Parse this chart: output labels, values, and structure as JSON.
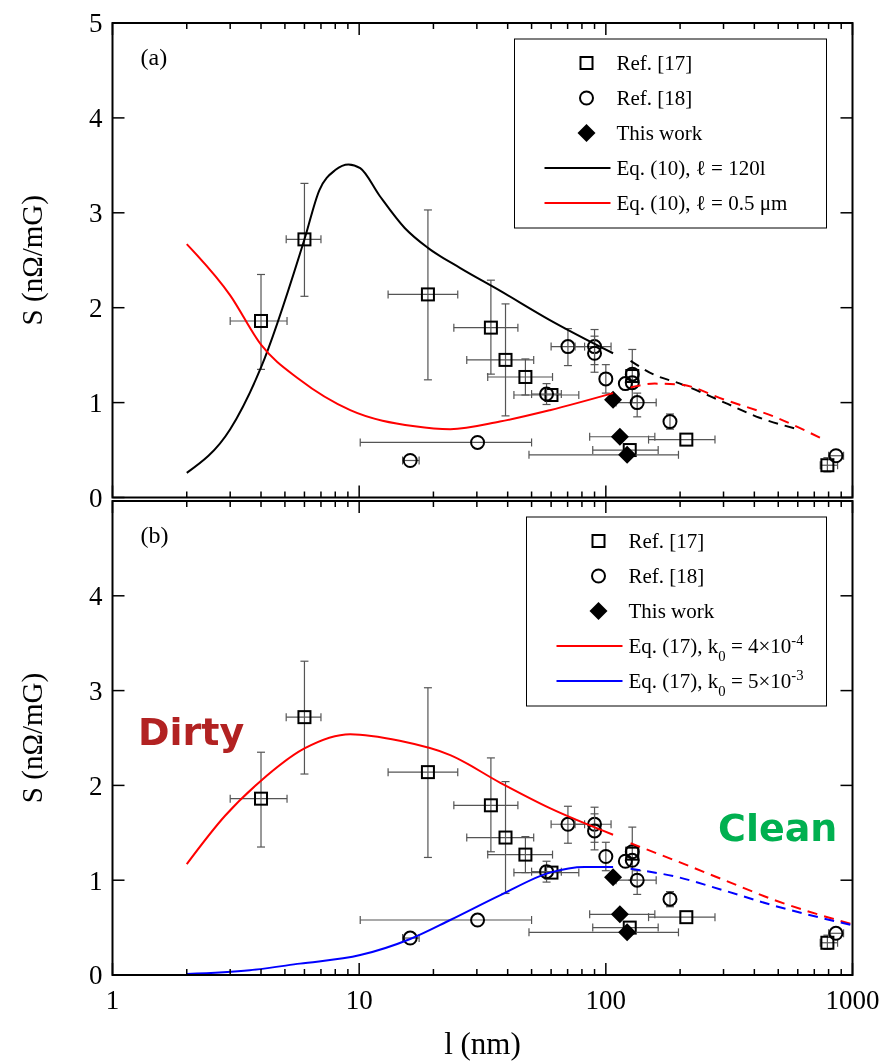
{
  "chart_data": [
    {
      "type": "scatter",
      "ylabel": "S (nΩ/mG)",
      "log": "x",
      "xlim": [
        1,
        1000
      ],
      "ylim": [
        0,
        5
      ],
      "tick_labels": "y",
      "legend": "top right",
      "xticks": [
        1,
        {
          "value": 2,
          "label": null
        },
        {
          "value": 3,
          "label": null
        },
        {
          "value": 4,
          "label": null
        },
        {
          "value": 5,
          "label": null
        },
        {
          "value": 6,
          "label": null
        },
        {
          "value": 7,
          "label": null
        },
        {
          "value": 8,
          "label": null
        },
        {
          "value": 9,
          "label": null
        },
        10,
        {
          "value": 20,
          "label": null
        },
        {
          "value": 30,
          "label": null
        },
        {
          "value": 40,
          "label": null
        },
        {
          "value": 50,
          "label": null
        },
        {
          "value": 60,
          "label": null
        },
        {
          "value": 70,
          "label": null
        },
        {
          "value": 80,
          "label": null
        },
        {
          "value": 90,
          "label": null
        },
        100,
        {
          "value": 200,
          "label": null
        },
        {
          "value": 300,
          "label": null
        },
        {
          "value": 400,
          "label": null
        },
        {
          "value": 500,
          "label": null
        },
        {
          "value": 600,
          "label": null
        },
        {
          "value": 700,
          "label": null
        },
        {
          "value": 800,
          "label": null
        },
        {
          "value": 900,
          "label": null
        },
        1000
      ],
      "yticks": [
        0,
        1,
        2,
        3,
        4,
        5
      ],
      "annotations": [
        "(a)"
      ],
      "series": [
        {
          "name": "Ref. [17]",
          "type": "scatter",
          "marker": "square",
          "color": "#000000",
          "x": [
            4.0,
            6.0,
            19.0,
            34.2,
            39.2,
            47.2,
            60.2,
            128,
            125,
            212,
            791
          ],
          "values": [
            1.86,
            2.72,
            2.14,
            1.79,
            1.45,
            1.27,
            1.08,
            1.28,
            0.5,
            0.61,
            0.34
          ],
          "errors": [
            [
              1.35,
              2.35
            ],
            [
              2.12,
              3.31
            ],
            [
              1.24,
              3.03
            ],
            [
              1.3,
              2.29
            ],
            [
              0.86,
              2.04
            ],
            [
              1.08,
              1.46
            ],
            null,
            [
              1.0,
              1.56
            ],
            null,
            null,
            [
              0.27,
              0.42
            ]
          ],
          "xerrors": [
            [
              3.0,
              5.1
            ],
            [
              5.06,
              7.0
            ],
            [
              13.1,
              25.1
            ],
            [
              24.2,
              44
            ],
            [
              27.3,
              51
            ],
            [
              33.2,
              60.8
            ],
            [
              42.4,
              77.7
            ],
            null,
            [
              88.5,
              163
            ],
            [
              149,
              277
            ],
            [
              740,
              870
            ]
          ]
        },
        {
          "name": "Ref. [18]",
          "type": "scatter",
          "marker": "circle",
          "color": "#000000",
          "x": [
            16.1,
            30.2,
            57.5,
            70.2,
            90,
            90,
            100,
            120,
            128,
            128,
            134,
            182,
            857
          ],
          "values": [
            0.39,
            0.58,
            1.09,
            1.59,
            1.59,
            1.52,
            1.25,
            1.2,
            1.3,
            1.21,
            1.0,
            0.8,
            0.44
          ],
          "errors": [
            null,
            null,
            [
              0.98,
              1.2
            ],
            [
              1.39,
              1.78
            ],
            [
              1.4,
              1.77
            ],
            [
              1.32,
              1.7
            ],
            [
              1.1,
              1.4
            ],
            null,
            null,
            null,
            [
              0.85,
              1.1
            ],
            [
              0.72,
              0.88
            ],
            null
          ],
          "xerrors": [
            [
              15,
              17.5
            ],
            [
              10.1,
              50
            ],
            [
              50,
              66
            ],
            [
              60,
              82
            ],
            [
              75,
              105
            ],
            null,
            null,
            null,
            null,
            null,
            [
              110,
              160
            ],
            null,
            [
              800,
              920
            ]
          ]
        },
        {
          "name": "This work",
          "type": "scatter",
          "marker": "diamond",
          "color": "#000000",
          "x": [
            107,
            114,
            122
          ],
          "values": [
            1.03,
            0.64,
            0.45
          ],
          "xerrors": [
            null,
            [
              86,
              158
            ],
            [
              48.8,
              197
            ]
          ]
        },
        {
          "name": "Eq. (10), ℓ = 120l",
          "type": "line",
          "color": "#000000",
          "line_style": "solid",
          "x": [
            2,
            3,
            4,
            6,
            6.9,
            8,
            9.05,
            10.1,
            12.1,
            15.3,
            19,
            25.6,
            37.2,
            59.3,
            107
          ],
          "values": [
            0.26,
            0.72,
            1.37,
            2.72,
            3.24,
            3.45,
            3.51,
            3.47,
            3.18,
            2.84,
            2.63,
            2.42,
            2.18,
            1.87,
            1.52
          ]
        },
        {
          "name": "Eq. (10), ℓ = 0.5 μm",
          "type": "line",
          "color": "#ff0000",
          "line_style": "solid",
          "x": [
            2,
            3,
            4,
            5.75,
            9.2,
            16.8,
            23.4,
            37.2,
            59.3,
            107
          ],
          "values": [
            2.67,
            2.13,
            1.61,
            1.24,
            0.92,
            0.75,
            0.72,
            0.8,
            0.92,
            1.1
          ]
        },
        {
          "type": "line",
          "color": "#000000",
          "line_style": "dashed",
          "x": [
            126,
            158,
            200,
            303,
            420,
            580
          ],
          "values": [
            1.44,
            1.29,
            1.2,
            1.0,
            0.84,
            0.73
          ]
        },
        {
          "type": "line",
          "color": "#ff0000",
          "line_style": "dashed",
          "x": [
            126,
            158,
            200,
            303,
            483,
            738
          ],
          "values": [
            1.16,
            1.2,
            1.19,
            1.03,
            0.85,
            0.63
          ]
        }
      ]
    },
    {
      "type": "scatter",
      "xlabel": "l (nm)",
      "ylabel": "S (nΩ/mG)",
      "log": "x",
      "xlim": [
        1,
        1000
      ],
      "ylim": [
        0,
        5
      ],
      "legend": "top right",
      "xticks": [
        1,
        {
          "value": 2,
          "label": null
        },
        {
          "value": 3,
          "label": null
        },
        {
          "value": 4,
          "label": null
        },
        {
          "value": 5,
          "label": null
        },
        {
          "value": 6,
          "label": null
        },
        {
          "value": 7,
          "label": null
        },
        {
          "value": 8,
          "label": null
        },
        {
          "value": 9,
          "label": null
        },
        10,
        {
          "value": 20,
          "label": null
        },
        {
          "value": 30,
          "label": null
        },
        {
          "value": 40,
          "label": null
        },
        {
          "value": 50,
          "label": null
        },
        {
          "value": 60,
          "label": null
        },
        {
          "value": 70,
          "label": null
        },
        {
          "value": 80,
          "label": null
        },
        {
          "value": 90,
          "label": null
        },
        100,
        {
          "value": 200,
          "label": null
        },
        {
          "value": 300,
          "label": null
        },
        {
          "value": 400,
          "label": null
        },
        {
          "value": 500,
          "label": null
        },
        {
          "value": 600,
          "label": null
        },
        {
          "value": 700,
          "label": null
        },
        {
          "value": 800,
          "label": null
        },
        {
          "value": 900,
          "label": null
        },
        1000
      ],
      "yticks": [
        0,
        1,
        2,
        3,
        4,
        {
          "value": 5,
          "label": null
        }
      ],
      "annotations": [
        "(b)",
        "Dirty",
        "Clean"
      ],
      "series": [
        {
          "name": "Ref. [17]",
          "type": "scatter",
          "marker": "square",
          "color": "#000000",
          "x": [
            4.0,
            6.0,
            19.0,
            34.2,
            39.2,
            47.2,
            60.2,
            128,
            125,
            212,
            791
          ],
          "values": [
            1.86,
            2.72,
            2.14,
            1.79,
            1.45,
            1.27,
            1.08,
            1.28,
            0.5,
            0.61,
            0.34
          ],
          "errors": [
            [
              1.35,
              2.35
            ],
            [
              2.12,
              3.31
            ],
            [
              1.24,
              3.03
            ],
            [
              1.3,
              2.29
            ],
            [
              0.86,
              2.04
            ],
            [
              1.08,
              1.46
            ],
            null,
            [
              1.0,
              1.56
            ],
            null,
            null,
            [
              0.27,
              0.42
            ]
          ],
          "xerrors": [
            [
              3.0,
              5.1
            ],
            [
              5.06,
              7.0
            ],
            [
              13.1,
              25.1
            ],
            [
              24.2,
              44
            ],
            [
              27.3,
              51
            ],
            [
              33.2,
              60.8
            ],
            [
              42.4,
              77.7
            ],
            null,
            [
              88.5,
              163
            ],
            [
              149,
              277
            ],
            [
              740,
              870
            ]
          ]
        },
        {
          "name": "Ref. [18]",
          "type": "scatter",
          "marker": "circle",
          "color": "#000000",
          "x": [
            16.1,
            30.2,
            57.5,
            70.2,
            90,
            90,
            100,
            120,
            128,
            128,
            134,
            182,
            857
          ],
          "values": [
            0.39,
            0.58,
            1.09,
            1.59,
            1.59,
            1.52,
            1.25,
            1.2,
            1.3,
            1.21,
            1.0,
            0.8,
            0.44
          ],
          "errors": [
            null,
            null,
            [
              0.98,
              1.2
            ],
            [
              1.39,
              1.78
            ],
            [
              1.4,
              1.77
            ],
            [
              1.32,
              1.7
            ],
            [
              1.1,
              1.4
            ],
            null,
            null,
            null,
            [
              0.85,
              1.1
            ],
            [
              0.72,
              0.88
            ],
            null
          ],
          "xerrors": [
            [
              15,
              17.5
            ],
            [
              10.1,
              50
            ],
            [
              50,
              66
            ],
            [
              60,
              82
            ],
            [
              75,
              105
            ],
            null,
            null,
            null,
            null,
            null,
            [
              110,
              160
            ],
            null,
            [
              800,
              920
            ]
          ]
        },
        {
          "name": "This work",
          "type": "scatter",
          "marker": "diamond",
          "color": "#000000",
          "x": [
            107,
            114,
            122
          ],
          "values": [
            1.03,
            0.64,
            0.45
          ],
          "xerrors": [
            null,
            [
              86,
              158
            ],
            [
              48.8,
              197
            ]
          ]
        },
        {
          "name": "Eq. (17), k$_{0}$ = 4×10$^{-4}$",
          "type": "line",
          "color": "#ff0000",
          "line_style": "solid",
          "x": [
            2,
            2.86,
            4,
            6,
            9.2,
            14.6,
            23.4,
            37.2,
            59.3,
            107
          ],
          "values": [
            1.17,
            1.68,
            2.05,
            2.39,
            2.54,
            2.47,
            2.32,
            2.03,
            1.76,
            1.48
          ]
        },
        {
          "name": "Eq. (17), k$_{0}$ = 5×10$^{-3}$",
          "type": "line",
          "color": "#0000ff",
          "line_style": "solid",
          "x": [
            2,
            3.6,
            5.75,
            10.1,
            16.1,
            23.4,
            37.2,
            59.3,
            82,
            107
          ],
          "values": [
            0.01,
            0.05,
            0.12,
            0.21,
            0.38,
            0.58,
            0.84,
            1.08,
            1.14,
            1.14
          ]
        },
        {
          "type": "line",
          "color": "#ff0000",
          "line_style": "dashed",
          "x": [
            126,
            190,
            303,
            483,
            980
          ],
          "values": [
            1.39,
            1.21,
            1.0,
            0.79,
            0.54
          ]
        },
        {
          "type": "line",
          "color": "#0000ff",
          "line_style": "dashed",
          "x": [
            126,
            190,
            303,
            483,
            980
          ],
          "values": [
            1.12,
            1.04,
            0.89,
            0.73,
            0.53
          ]
        }
      ]
    }
  ]
}
